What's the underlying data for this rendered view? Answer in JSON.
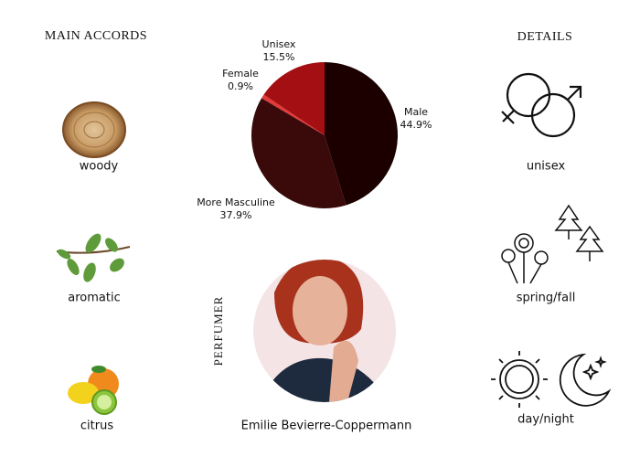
{
  "main_accords": {
    "title": "MAIN ACCORDS",
    "items": [
      "woody",
      "aromatic",
      "citrus"
    ]
  },
  "details": {
    "title": "DETAILS",
    "items": [
      "unisex",
      "spring/fall",
      "day/night"
    ]
  },
  "perfumer": {
    "label": "PERFUMER",
    "name": "Emilie Bevierre-Coppermann"
  },
  "chart_data": {
    "type": "pie",
    "categories": [
      "Male",
      "More Masculine",
      "Female",
      "Unisex"
    ],
    "values": [
      44.9,
      37.9,
      0.9,
      15.5
    ],
    "value_labels": [
      "44.9%",
      "37.9%",
      "0.9%",
      "15.5%"
    ],
    "colors": [
      "#1c0000",
      "#3a0909",
      "#e23a3a",
      "#a30f12"
    ]
  }
}
